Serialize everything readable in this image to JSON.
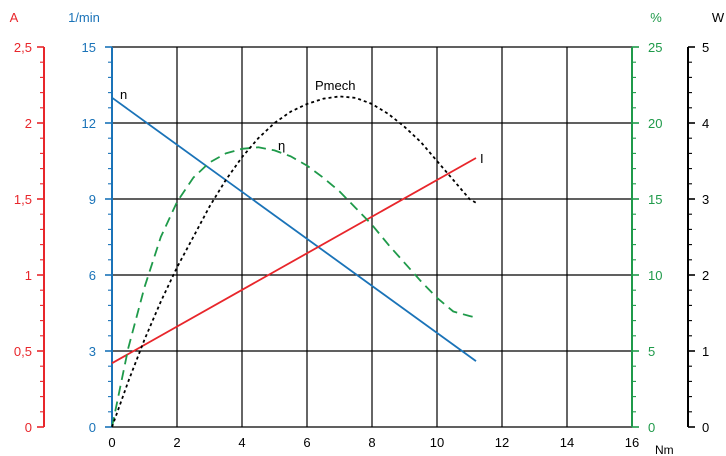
{
  "chart_data": {
    "type": "line",
    "xlabel": "Nm",
    "xlim": [
      0,
      16
    ],
    "x_ticks": [
      "0",
      "2",
      "4",
      "6",
      "8",
      "10",
      "12",
      "14",
      "16"
    ],
    "grid": true,
    "axes": {
      "current": {
        "unit": "A",
        "ylim": [
          0,
          2.5
        ],
        "ticks": [
          "0",
          "0,5",
          "1",
          "1,5",
          "2",
          "2,5"
        ],
        "color": "#e8262b"
      },
      "speed": {
        "unit": "1/min",
        "ylim": [
          0,
          15
        ],
        "ticks": [
          "0",
          "3",
          "6",
          "9",
          "12",
          "15"
        ],
        "color": "#1a73b8"
      },
      "efficiency": {
        "unit": "%",
        "ylim": [
          0,
          25
        ],
        "ticks": [
          "0",
          "5",
          "10",
          "15",
          "20",
          "25"
        ],
        "color": "#1f9a4a"
      },
      "power": {
        "unit": "W",
        "ylim": [
          0,
          5
        ],
        "ticks": [
          "0",
          "1",
          "2",
          "3",
          "4",
          "5"
        ],
        "color": "#000000"
      }
    },
    "series": [
      {
        "name": "n",
        "axis": "speed",
        "color": "#1a73b8",
        "style": "solid",
        "x": [
          0,
          11.2
        ],
        "y": [
          13.0,
          2.6
        ]
      },
      {
        "name": "I",
        "axis": "current",
        "color": "#e8262b",
        "style": "solid",
        "x": [
          0,
          11.2
        ],
        "y": [
          0.42,
          1.77
        ]
      },
      {
        "name": "η",
        "axis": "efficiency",
        "color": "#1f9a4a",
        "style": "dashed",
        "x": [
          0,
          0.5,
          1,
          1.5,
          2,
          2.5,
          3,
          3.5,
          4,
          4.5,
          5,
          5.5,
          6,
          6.5,
          7,
          7.5,
          8,
          8.5,
          9,
          9.5,
          10,
          10.5,
          11,
          11.2
        ],
        "y": [
          0,
          5.2,
          9.2,
          12.5,
          14.8,
          16.4,
          17.4,
          18.0,
          18.3,
          18.4,
          18.2,
          17.8,
          17.2,
          16.4,
          15.5,
          14.4,
          13.3,
          12.0,
          10.8,
          9.6,
          8.5,
          7.6,
          7.3,
          7.2
        ]
      },
      {
        "name": "Pmech",
        "axis": "power",
        "color": "#000000",
        "style": "dotted",
        "x": [
          0,
          0.5,
          1,
          1.5,
          2,
          2.5,
          3,
          3.5,
          4,
          4.5,
          5,
          5.5,
          6,
          6.5,
          7,
          7.5,
          8,
          8.5,
          9,
          9.5,
          10,
          10.5,
          11,
          11.2
        ],
        "y": [
          0,
          0.6,
          1.15,
          1.65,
          2.1,
          2.5,
          2.9,
          3.25,
          3.55,
          3.8,
          4.0,
          4.15,
          4.25,
          4.32,
          4.35,
          4.33,
          4.25,
          4.12,
          3.95,
          3.75,
          3.5,
          3.25,
          3.0,
          2.95
        ]
      }
    ],
    "annotations": [
      {
        "text": "n",
        "series": "n"
      },
      {
        "text": "Pmech",
        "series": "Pmech"
      },
      {
        "text": "η",
        "series": "η"
      },
      {
        "text": "I",
        "series": "I"
      }
    ]
  }
}
